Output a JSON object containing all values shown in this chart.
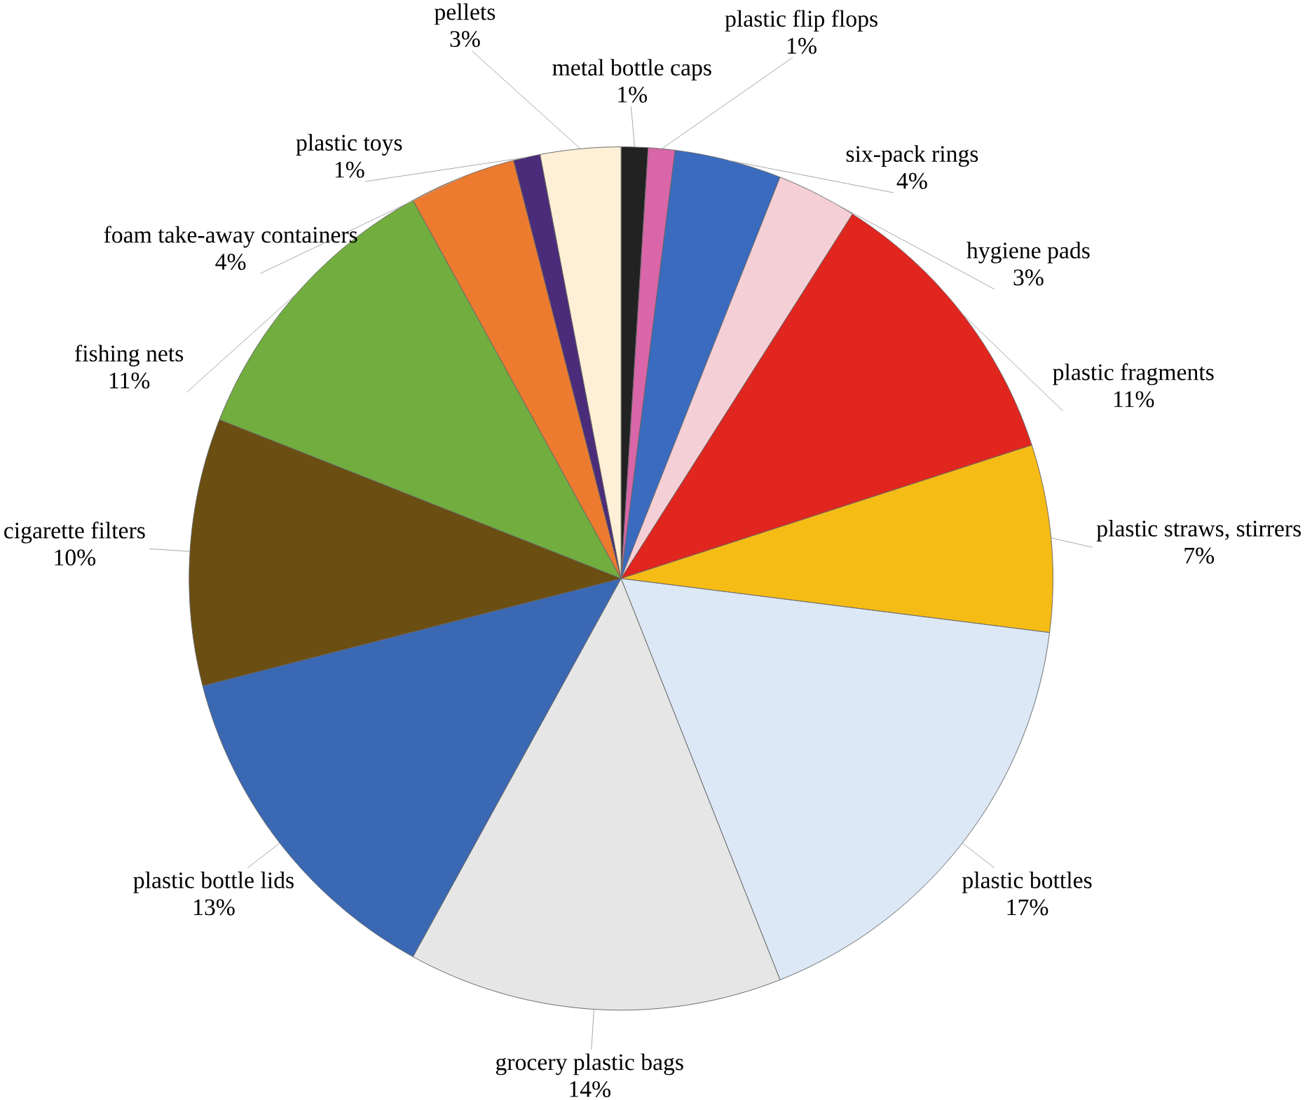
{
  "chart_data": {
    "type": "pie",
    "categories": [
      "metal bottle caps",
      "plastic flip flops",
      "six-pack rings",
      "hygiene pads",
      "plastic fragments",
      "plastic straws, stirrers",
      "plastic bottles",
      "grocery plastic bags",
      "plastic bottle lids",
      "cigarette filters",
      "fishing nets",
      "foam take-away containers",
      "plastic toys",
      "pellets"
    ],
    "values": [
      1,
      1,
      4,
      3,
      11,
      7,
      17,
      14,
      13,
      10,
      11,
      4,
      1,
      3
    ],
    "value_labels": [
      "1%",
      "1%",
      "4%",
      "3%",
      "11%",
      "7%",
      "17%",
      "14%",
      "13%",
      "10%",
      "11%",
      "4%",
      "1%",
      "3%"
    ],
    "colors": [
      "#222222",
      "#d966a8",
      "#3a6bbf",
      "#f5cfd6",
      "#e0261f",
      "#f6bc16",
      "#dce8f6",
      "#e6e6e6",
      "#3b68b3",
      "#6b4e12",
      "#72ad3f",
      "#ec7b30",
      "#4a2c7a",
      "#fdf0d6"
    ]
  }
}
